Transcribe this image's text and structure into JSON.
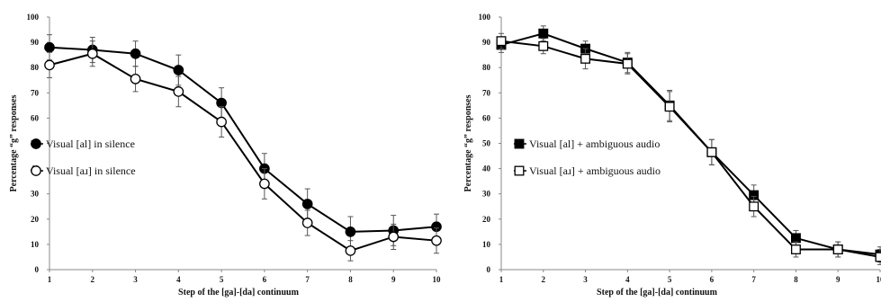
{
  "chart_data": [
    {
      "type": "line",
      "title": "",
      "xlabel": "Step of the [ga]-[da] continuum",
      "ylabel": "Percentage “g” responses",
      "ylim": [
        0,
        100
      ],
      "y_ticks": [
        "0",
        "10",
        "20",
        "30",
        "40",
        "50",
        "60",
        "70",
        "80",
        "90",
        "100"
      ],
      "categories": [
        "1",
        "2",
        "3",
        "4",
        "5",
        "6",
        "7",
        "8",
        "9",
        "10"
      ],
      "grid": false,
      "legend_position": "left",
      "series": [
        {
          "name": "Visual [al] in silence",
          "marker": "filled-circle",
          "color": "#000000",
          "values": [
            88,
            87,
            85.5,
            79,
            66,
            40,
            26,
            15,
            15.5,
            17
          ],
          "err": [
            5,
            5,
            5,
            6,
            6,
            6,
            6,
            6,
            6,
            5
          ]
        },
        {
          "name": "Visual [aɹ] in silence",
          "marker": "open-circle",
          "color": "#000000",
          "values": [
            81,
            85.5,
            75.5,
            70.5,
            58.5,
            34,
            18.5,
            7.5,
            13,
            11.5
          ],
          "err": [
            5,
            5,
            5,
            6,
            6,
            6,
            5,
            4,
            5,
            5
          ]
        }
      ]
    },
    {
      "type": "line",
      "title": "",
      "xlabel": "Step of the [ga]-[da] continuum",
      "ylabel": "Percentage “g” responses",
      "ylim": [
        0,
        100
      ],
      "y_ticks": [
        "0",
        "10",
        "20",
        "30",
        "40",
        "50",
        "60",
        "70",
        "80",
        "90",
        "100"
      ],
      "categories": [
        "1",
        "2",
        "3",
        "4",
        "5",
        "6",
        "7",
        "8",
        "9",
        "10"
      ],
      "grid": false,
      "legend_position": "left",
      "series": [
        {
          "name": "Visual [al] + ambiguous audio",
          "marker": "filled-square",
          "color": "#000000",
          "values": [
            89,
            93.5,
            87.5,
            82,
            65,
            46.5,
            29.5,
            12.5,
            8,
            6
          ],
          "err": [
            3,
            3,
            3,
            4,
            6,
            5,
            4,
            3,
            3,
            3
          ]
        },
        {
          "name": "Visual [aɹ] + ambiguous audio",
          "marker": "open-square",
          "color": "#000000",
          "values": [
            90.5,
            88.5,
            83.5,
            81.5,
            64.5,
            46.5,
            25,
            8,
            8,
            5
          ],
          "err": [
            3,
            3,
            4,
            4,
            6,
            5,
            4,
            3,
            3,
            3
          ]
        }
      ]
    }
  ]
}
